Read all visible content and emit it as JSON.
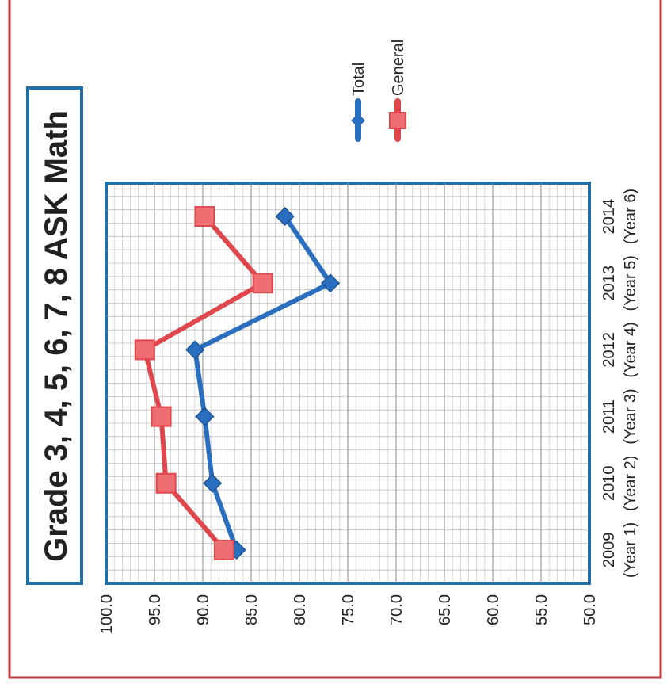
{
  "chart_data": {
    "type": "line",
    "title": "Grade 3, 4, 5, 6, 7, 8 ASK Math",
    "categories": [
      "2009",
      "2010",
      "2011",
      "2012",
      "2013",
      "2014"
    ],
    "category_sublabels": [
      "(Year 1)",
      "(Year 2)",
      "(Year 3)",
      "(Year 4)",
      "(Year 5)",
      "(Year 6)"
    ],
    "ylim": [
      50.0,
      100.0
    ],
    "yticks": [
      "100.0",
      "95.0",
      "90.0",
      "85.0",
      "80.0",
      "75.0",
      "70.0",
      "65.0",
      "60.0",
      "55.0",
      "50.0"
    ],
    "grid": true,
    "legend_position": "right",
    "series": [
      {
        "name": "Total",
        "values": [
          86.5,
          89.0,
          89.8,
          90.8,
          76.8,
          81.5
        ],
        "color": "#2a6fbf",
        "marker": "diamond"
      },
      {
        "name": "General",
        "values": [
          87.8,
          93.8,
          94.3,
          96.0,
          83.8,
          89.8
        ],
        "color": "#e0474c",
        "marker": "square"
      }
    ],
    "colors": {
      "title_border": "#1f6fa8",
      "plot_border": "#1f6fa8",
      "frame_border": "#c23a3a",
      "grid": "#9a9a9a"
    }
  }
}
